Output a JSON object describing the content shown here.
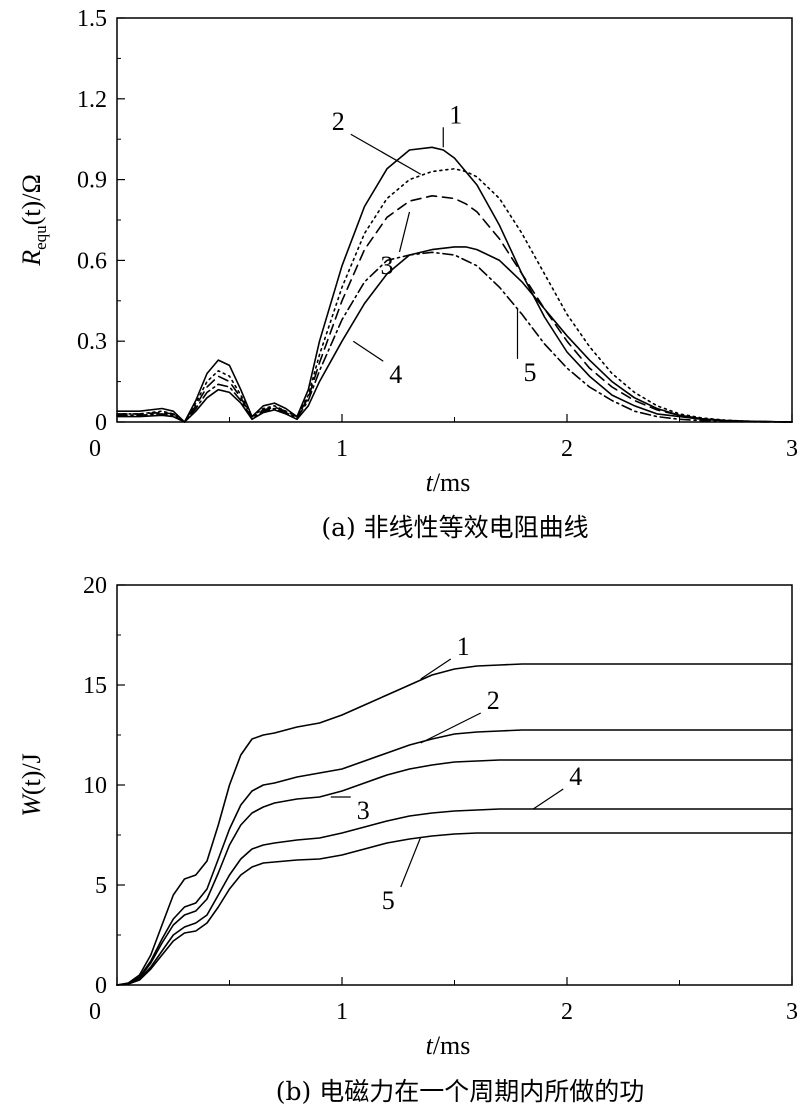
{
  "chart_data": [
    {
      "type": "line",
      "title": "",
      "caption": "(a) 非线性等效电阻曲线",
      "xlabel_italic": "t",
      "xlabel_unit": "/ms",
      "ylabel_main": "R",
      "ylabel_sub": "equ",
      "ylabel_arg": "(t)",
      "ylabel_unit": "/Ω",
      "xlim": [
        0,
        3
      ],
      "ylim": [
        0,
        1.5
      ],
      "xticks": [
        0,
        1,
        2,
        3
      ],
      "xtick_labels": [
        "0",
        "1",
        "2",
        "3"
      ],
      "yticks": [
        0,
        0.3,
        0.6,
        0.9,
        1.2,
        1.5
      ],
      "ytick_labels": [
        "0",
        "0.3",
        "0.6",
        "0.9",
        "1.2",
        "1.5"
      ],
      "series": [
        {
          "name": "1",
          "style": "solid",
          "x": [
            0,
            0.1,
            0.2,
            0.25,
            0.3,
            0.35,
            0.4,
            0.45,
            0.5,
            0.55,
            0.6,
            0.65,
            0.7,
            0.75,
            0.8,
            0.85,
            0.9,
            1.0,
            1.1,
            1.2,
            1.3,
            1.4,
            1.45,
            1.5,
            1.6,
            1.7,
            1.8,
            1.9,
            2.0,
            2.1,
            2.2,
            2.3,
            2.4,
            2.5,
            2.6,
            2.7,
            2.8,
            2.9,
            3.0
          ],
          "y": [
            0.04,
            0.04,
            0.05,
            0.04,
            0.0,
            0.08,
            0.18,
            0.23,
            0.21,
            0.12,
            0.02,
            0.06,
            0.07,
            0.05,
            0.02,
            0.12,
            0.3,
            0.58,
            0.8,
            0.94,
            1.01,
            1.02,
            1.01,
            0.98,
            0.88,
            0.73,
            0.55,
            0.39,
            0.26,
            0.17,
            0.1,
            0.06,
            0.03,
            0.02,
            0.01,
            0.005,
            0.002,
            0.001,
            0.0
          ]
        },
        {
          "name": "2",
          "style": "dotted",
          "x": [
            0,
            0.1,
            0.2,
            0.25,
            0.3,
            0.35,
            0.4,
            0.45,
            0.5,
            0.55,
            0.6,
            0.65,
            0.7,
            0.75,
            0.8,
            0.85,
            0.9,
            1.0,
            1.1,
            1.2,
            1.3,
            1.4,
            1.5,
            1.55,
            1.6,
            1.7,
            1.8,
            1.9,
            2.0,
            2.1,
            2.2,
            2.3,
            2.4,
            2.5,
            2.6,
            2.7,
            2.8,
            2.9,
            3.0
          ],
          "y": [
            0.03,
            0.03,
            0.04,
            0.03,
            0.0,
            0.07,
            0.15,
            0.19,
            0.17,
            0.1,
            0.02,
            0.05,
            0.06,
            0.04,
            0.02,
            0.1,
            0.25,
            0.5,
            0.7,
            0.83,
            0.9,
            0.93,
            0.94,
            0.93,
            0.91,
            0.83,
            0.7,
            0.55,
            0.4,
            0.28,
            0.18,
            0.11,
            0.06,
            0.03,
            0.015,
            0.007,
            0.003,
            0.001,
            0.0
          ]
        },
        {
          "name": "3",
          "style": "dashed",
          "x": [
            0,
            0.1,
            0.2,
            0.25,
            0.3,
            0.35,
            0.4,
            0.45,
            0.5,
            0.55,
            0.6,
            0.65,
            0.7,
            0.75,
            0.8,
            0.85,
            0.9,
            1.0,
            1.1,
            1.2,
            1.3,
            1.4,
            1.5,
            1.55,
            1.6,
            1.7,
            1.8,
            1.9,
            2.0,
            2.1,
            2.2,
            2.3,
            2.4,
            2.5,
            2.6,
            2.7,
            2.8,
            2.9,
            3.0
          ],
          "y": [
            0.03,
            0.03,
            0.035,
            0.03,
            0.0,
            0.06,
            0.13,
            0.17,
            0.15,
            0.09,
            0.02,
            0.045,
            0.055,
            0.04,
            0.02,
            0.09,
            0.22,
            0.45,
            0.64,
            0.76,
            0.82,
            0.84,
            0.83,
            0.81,
            0.78,
            0.68,
            0.55,
            0.42,
            0.3,
            0.2,
            0.13,
            0.08,
            0.045,
            0.025,
            0.012,
            0.006,
            0.003,
            0.001,
            0.0
          ]
        },
        {
          "name": "4",
          "style": "solid",
          "x": [
            0,
            0.1,
            0.2,
            0.25,
            0.3,
            0.35,
            0.4,
            0.45,
            0.5,
            0.55,
            0.6,
            0.65,
            0.7,
            0.75,
            0.8,
            0.85,
            0.9,
            1.0,
            1.1,
            1.2,
            1.3,
            1.4,
            1.5,
            1.55,
            1.6,
            1.7,
            1.8,
            1.9,
            2.0,
            2.1,
            2.2,
            2.3,
            2.4,
            2.5,
            2.6,
            2.7,
            2.8,
            2.9,
            3.0
          ],
          "y": [
            0.02,
            0.02,
            0.025,
            0.02,
            0.0,
            0.04,
            0.09,
            0.12,
            0.11,
            0.07,
            0.01,
            0.035,
            0.045,
            0.03,
            0.01,
            0.06,
            0.15,
            0.3,
            0.44,
            0.55,
            0.62,
            0.64,
            0.65,
            0.65,
            0.64,
            0.6,
            0.52,
            0.42,
            0.32,
            0.23,
            0.15,
            0.09,
            0.05,
            0.025,
            0.012,
            0.006,
            0.003,
            0.001,
            0.0
          ]
        },
        {
          "name": "5",
          "style": "dashdot",
          "x": [
            0,
            0.1,
            0.2,
            0.25,
            0.3,
            0.35,
            0.4,
            0.45,
            0.5,
            0.55,
            0.6,
            0.65,
            0.7,
            0.75,
            0.8,
            0.85,
            0.9,
            1.0,
            1.1,
            1.2,
            1.3,
            1.4,
            1.5,
            1.6,
            1.7,
            1.8,
            1.9,
            2.0,
            2.1,
            2.2,
            2.3,
            2.4,
            2.5,
            2.6,
            2.7,
            2.8,
            2.9,
            3.0
          ],
          "y": [
            0.025,
            0.025,
            0.03,
            0.025,
            0.0,
            0.05,
            0.11,
            0.14,
            0.13,
            0.08,
            0.015,
            0.04,
            0.05,
            0.035,
            0.015,
            0.08,
            0.19,
            0.38,
            0.52,
            0.6,
            0.62,
            0.63,
            0.62,
            0.58,
            0.5,
            0.4,
            0.29,
            0.2,
            0.13,
            0.08,
            0.04,
            0.02,
            0.01,
            0.005,
            0.002,
            0.001,
            0.0,
            0.0
          ]
        }
      ],
      "labels": [
        {
          "text": "1",
          "at_x": 1.45,
          "at_y": 1.02
        },
        {
          "text": "2",
          "at_x": 1.35,
          "at_y": 0.92
        },
        {
          "text": "3",
          "at_x": 1.3,
          "at_y": 0.78
        },
        {
          "text": "4",
          "at_x": 1.05,
          "at_y": 0.3
        },
        {
          "text": "5",
          "at_x": 1.78,
          "at_y": 0.42
        }
      ]
    },
    {
      "type": "line",
      "title": "",
      "caption": "(b) 电磁力在一个周期内所做的功",
      "xlabel_italic": "t",
      "xlabel_unit": "/ms",
      "ylabel_main": "W",
      "ylabel_sub": "",
      "ylabel_arg": "(t)",
      "ylabel_unit": "/J",
      "xlim": [
        0,
        3
      ],
      "ylim": [
        0,
        20
      ],
      "xticks": [
        0,
        1,
        2,
        3
      ],
      "xtick_labels": [
        "0",
        "1",
        "2",
        "3"
      ],
      "yticks": [
        0,
        5,
        10,
        15,
        20
      ],
      "ytick_labels": [
        "0",
        "5",
        "10",
        "15",
        "20"
      ],
      "series": [
        {
          "name": "1",
          "style": "solid",
          "x": [
            0,
            0.05,
            0.1,
            0.15,
            0.2,
            0.25,
            0.3,
            0.35,
            0.4,
            0.45,
            0.5,
            0.55,
            0.6,
            0.65,
            0.7,
            0.8,
            0.9,
            1.0,
            1.1,
            1.2,
            1.3,
            1.4,
            1.5,
            1.6,
            1.7,
            1.8,
            2.0,
            2.5,
            3.0
          ],
          "y": [
            0,
            0.1,
            0.5,
            1.5,
            3.0,
            4.5,
            5.3,
            5.5,
            6.2,
            8.0,
            10.0,
            11.5,
            12.3,
            12.5,
            12.6,
            12.9,
            13.1,
            13.5,
            14.0,
            14.5,
            15.0,
            15.5,
            15.8,
            15.95,
            16.0,
            16.05,
            16.05,
            16.05,
            16.05
          ]
        },
        {
          "name": "2",
          "style": "solid",
          "x": [
            0,
            0.05,
            0.1,
            0.15,
            0.2,
            0.25,
            0.3,
            0.35,
            0.4,
            0.45,
            0.5,
            0.55,
            0.6,
            0.65,
            0.7,
            0.8,
            0.9,
            1.0,
            1.1,
            1.2,
            1.3,
            1.4,
            1.5,
            1.6,
            1.7,
            1.8,
            2.0,
            2.5,
            3.0
          ],
          "y": [
            0,
            0.08,
            0.4,
            1.2,
            2.3,
            3.3,
            3.9,
            4.1,
            4.8,
            6.3,
            7.8,
            9.0,
            9.7,
            10.0,
            10.1,
            10.4,
            10.6,
            10.8,
            11.2,
            11.6,
            12.0,
            12.3,
            12.55,
            12.65,
            12.7,
            12.75,
            12.75,
            12.75,
            12.75
          ]
        },
        {
          "name": "3",
          "style": "solid",
          "x": [
            0,
            0.05,
            0.1,
            0.15,
            0.2,
            0.25,
            0.3,
            0.35,
            0.4,
            0.45,
            0.5,
            0.55,
            0.6,
            0.65,
            0.7,
            0.8,
            0.9,
            1.0,
            1.1,
            1.2,
            1.3,
            1.4,
            1.5,
            1.6,
            1.7,
            1.8,
            2.0,
            2.5,
            3.0
          ],
          "y": [
            0,
            0.07,
            0.35,
            1.1,
            2.1,
            3.0,
            3.5,
            3.7,
            4.3,
            5.6,
            7.0,
            8.0,
            8.6,
            8.9,
            9.1,
            9.3,
            9.4,
            9.7,
            10.1,
            10.5,
            10.8,
            11.0,
            11.15,
            11.2,
            11.25,
            11.25,
            11.25,
            11.25,
            11.25
          ]
        },
        {
          "name": "4",
          "style": "solid",
          "x": [
            0,
            0.05,
            0.1,
            0.15,
            0.2,
            0.25,
            0.3,
            0.35,
            0.4,
            0.45,
            0.5,
            0.55,
            0.6,
            0.65,
            0.7,
            0.8,
            0.9,
            1.0,
            1.1,
            1.2,
            1.3,
            1.4,
            1.5,
            1.6,
            1.7,
            1.8,
            2.0,
            2.5,
            3.0
          ],
          "y": [
            0,
            0.06,
            0.3,
            0.9,
            1.7,
            2.5,
            2.9,
            3.1,
            3.5,
            4.5,
            5.5,
            6.3,
            6.8,
            7.0,
            7.1,
            7.25,
            7.35,
            7.6,
            7.9,
            8.2,
            8.45,
            8.6,
            8.7,
            8.75,
            8.8,
            8.8,
            8.8,
            8.8,
            8.8
          ]
        },
        {
          "name": "5",
          "style": "solid",
          "x": [
            0,
            0.05,
            0.1,
            0.15,
            0.2,
            0.25,
            0.3,
            0.35,
            0.4,
            0.45,
            0.5,
            0.55,
            0.6,
            0.65,
            0.7,
            0.8,
            0.9,
            1.0,
            1.1,
            1.2,
            1.3,
            1.4,
            1.5,
            1.6,
            1.7,
            1.8,
            2.0,
            2.5,
            3.0
          ],
          "y": [
            0,
            0.05,
            0.25,
            0.8,
            1.5,
            2.2,
            2.6,
            2.7,
            3.1,
            3.9,
            4.8,
            5.5,
            5.9,
            6.1,
            6.15,
            6.25,
            6.3,
            6.5,
            6.8,
            7.1,
            7.3,
            7.45,
            7.55,
            7.6,
            7.6,
            7.6,
            7.6,
            7.6,
            7.6
          ]
        }
      ],
      "labels": [
        {
          "text": "1",
          "at_x": 1.35,
          "at_y": 15.3
        },
        {
          "text": "2",
          "at_x": 1.35,
          "at_y": 12.1
        },
        {
          "text": "3",
          "at_x": 0.95,
          "at_y": 9.4
        },
        {
          "text": "4",
          "at_x": 1.85,
          "at_y": 8.8
        },
        {
          "text": "5",
          "at_x": 1.35,
          "at_y": 7.4
        }
      ]
    }
  ]
}
